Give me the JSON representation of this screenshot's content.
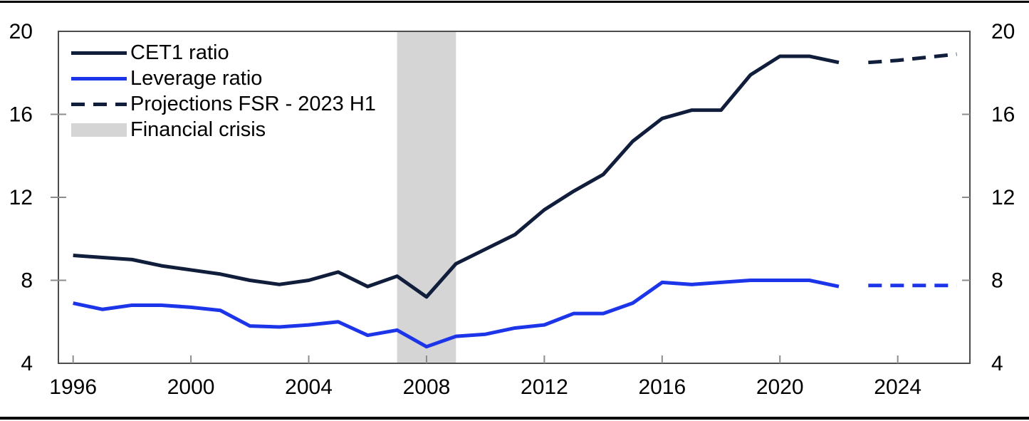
{
  "figure": {
    "background": "#ffffff",
    "top_rule_color": "#000000",
    "bottom_rule_color": "#000000"
  },
  "colors": {
    "navy": "#101E3C",
    "blue": "#1D35E8",
    "crisis_gray": "#D5D5D5",
    "plot_border": "#4D4D4D",
    "tick_mark": "#8C8C8C",
    "label_text": "#000000"
  },
  "legend": {
    "items": [
      {
        "label": "CET1 ratio",
        "swatch": "line-solid-navy"
      },
      {
        "label": "Leverage ratio",
        "swatch": "line-solid-blue"
      },
      {
        "label": "Projections FSR - 2023 H1",
        "swatch": "line-dashed-navy"
      },
      {
        "label": "Financial crisis",
        "swatch": "area-gray"
      }
    ]
  },
  "chart_data": {
    "type": "line",
    "title": "",
    "xlabel": "",
    "ylabel": "",
    "grid": false,
    "legend_position": "top-left-inside",
    "x_axis": {
      "range": [
        1995.5,
        2026.45
      ],
      "tick_years": [
        1996,
        2000,
        2004,
        2008,
        2012,
        2016,
        2020,
        2024
      ],
      "tick_labels": [
        "1996",
        "2000",
        "2004",
        "2008",
        "2012",
        "2016",
        "2020",
        "2024"
      ]
    },
    "y_axis": {
      "range": [
        4,
        20
      ],
      "tick_values": [
        4,
        8,
        12,
        16,
        20
      ],
      "tick_labels": [
        "4",
        "8",
        "12",
        "16",
        "20"
      ],
      "labels_both_sides": true,
      "inner_tick_values": [
        8,
        12,
        16
      ]
    },
    "crisis_band": {
      "name": "Financial crisis",
      "from": 2007,
      "to": 2009,
      "color_key": "crisis_gray"
    },
    "series": [
      {
        "key": "cet1-line",
        "name": "CET1 ratio",
        "color_key": "navy",
        "style": "solid",
        "x": [
          1996,
          1997,
          1998,
          1999,
          2000,
          2001,
          2002,
          2003,
          2004,
          2005,
          2006,
          2007,
          2008,
          2009,
          2010,
          2011,
          2012,
          2013,
          2014,
          2015,
          2016,
          2017,
          2018,
          2019,
          2020,
          2021,
          2022
        ],
        "values": [
          9.2,
          9.1,
          9.0,
          8.7,
          8.5,
          8.3,
          8.0,
          7.8,
          8.0,
          8.4,
          7.7,
          8.2,
          7.2,
          8.8,
          9.5,
          10.2,
          11.4,
          12.3,
          13.1,
          14.7,
          15.8,
          16.2,
          16.2,
          17.9,
          18.8,
          18.8,
          18.5
        ]
      },
      {
        "key": "leverage-line",
        "name": "Leverage ratio",
        "color_key": "blue",
        "style": "solid",
        "x": [
          1996,
          1997,
          1998,
          1999,
          2000,
          2001,
          2002,
          2003,
          2004,
          2005,
          2006,
          2007,
          2008,
          2009,
          2010,
          2011,
          2012,
          2013,
          2014,
          2015,
          2016,
          2017,
          2018,
          2019,
          2020,
          2021,
          2022
        ],
        "values": [
          6.9,
          6.6,
          6.8,
          6.8,
          6.7,
          6.55,
          5.8,
          5.75,
          5.85,
          6.0,
          5.35,
          5.6,
          4.8,
          5.3,
          5.4,
          5.7,
          5.85,
          6.4,
          6.4,
          6.9,
          7.9,
          7.8,
          7.9,
          8.0,
          8.0,
          8.0,
          7.7
        ]
      },
      {
        "key": "cet1-projection-line",
        "name": "CET1 ratio projection FSR - 2023 H1",
        "color_key": "navy",
        "style": "dashed",
        "x": [
          2023,
          2024,
          2025,
          2026
        ],
        "values": [
          18.5,
          18.6,
          18.75,
          18.9
        ]
      },
      {
        "key": "leverage-projection-line",
        "name": "Leverage ratio projection FSR - 2023 H1",
        "color_key": "blue",
        "style": "dashed",
        "x": [
          2023,
          2024,
          2025,
          2026
        ],
        "values": [
          7.75,
          7.75,
          7.75,
          7.75
        ]
      }
    ]
  }
}
